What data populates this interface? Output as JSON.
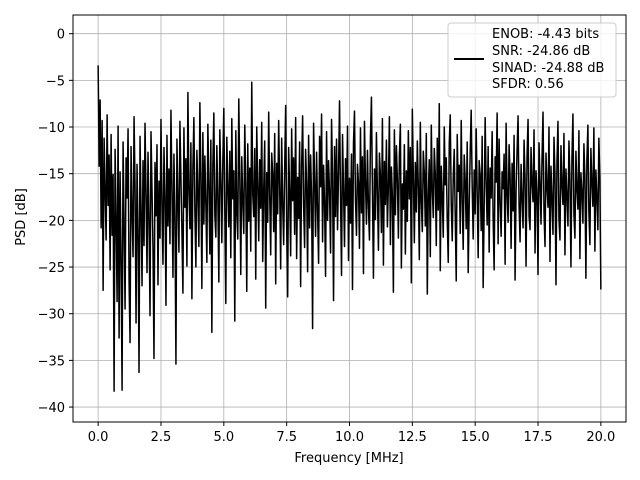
{
  "chart_data": {
    "type": "line",
    "title": "",
    "xlabel": "Frequency [MHz]",
    "ylabel": "PSD [dB]",
    "xlim": [
      -1.0,
      21.0
    ],
    "ylim": [
      -41.6,
      2.0
    ],
    "grid": true,
    "legend_placement": "upper-right",
    "x_ticks": [
      0.0,
      2.5,
      5.0,
      7.5,
      10.0,
      12.5,
      15.0,
      17.5,
      20.0
    ],
    "x_tick_labels": [
      "0.0",
      "2.5",
      "5.0",
      "7.5",
      "10.0",
      "12.5",
      "15.0",
      "17.5",
      "20.0"
    ],
    "y_ticks": [
      0,
      -5,
      -10,
      -15,
      -20,
      -25,
      -30,
      -35,
      -40
    ],
    "y_tick_labels": [
      "0",
      "−5",
      "−10",
      "−15",
      "−20",
      "−25",
      "−30",
      "−35",
      "−40"
    ],
    "legend": [
      "ENOB: -4.43 bits",
      "SNR: -24.86 dB",
      "SINAD: -24.88 dB",
      "SFDR: 0.56"
    ],
    "series": [
      {
        "color": "#000000",
        "x_start": 0.0,
        "x_end": 20.0,
        "values": [
          -3.4,
          -14.2,
          -7.1,
          -20.8,
          -9.3,
          -27.5,
          -11.2,
          -16.9,
          -22.1,
          -8.7,
          -18.4,
          -13.0,
          -25.3,
          -10.8,
          -21.6,
          -15.1,
          -38.3,
          -12.4,
          -19.9,
          -28.7,
          -9.9,
          -32.6,
          -14.8,
          -24.2,
          -38.2,
          -11.6,
          -20.3,
          -29.5,
          -13.3,
          -17.6,
          -10.2,
          -26.4,
          -33.1,
          -12.1,
          -19.2,
          -23.9,
          -8.9,
          -16.2,
          -31.0,
          -14.0,
          -21.3,
          -36.3,
          -11.0,
          -18.8,
          -27.0,
          -13.6,
          -22.7,
          -9.6,
          -17.1,
          -25.6,
          -12.7,
          -20.0,
          -30.2,
          -10.5,
          -16.6,
          -23.1,
          -34.8,
          -13.8,
          -19.5,
          -11.9,
          -26.9,
          -15.8,
          -21.9,
          -9.2,
          -18.1,
          -24.7,
          -12.2,
          -17.3,
          -29.1,
          -10.9,
          -20.6,
          -14.5,
          -22.5,
          -8.2,
          -16.4,
          -26.1,
          -12.9,
          -19.7,
          -35.4,
          -11.3,
          -17.8,
          -23.4,
          -9.4,
          -15.5,
          -21.1,
          -27.8,
          -10.1,
          -18.6,
          -13.4,
          -24.9,
          -6.3,
          -16.8,
          -20.9,
          -11.7,
          -28.4,
          -14.3,
          -9.0,
          -19.0,
          -25.0,
          -12.5,
          -17.0,
          -22.8,
          -7.4,
          -15.2,
          -27.3,
          -10.6,
          -20.4,
          -13.1,
          -18.3,
          -24.5,
          -9.7,
          -16.0,
          -23.6,
          -11.4,
          -32.0,
          -14.1,
          -8.5,
          -19.4,
          -21.8,
          -12.0,
          -17.5,
          -26.6,
          -10.3,
          -15.6,
          -22.4,
          -13.7,
          -8.0,
          -18.9,
          -28.9,
          -11.1,
          -16.3,
          -20.7,
          -12.6,
          -24.0,
          -9.1,
          -17.7,
          -14.7,
          -30.8,
          -10.4,
          -19.1,
          -22.0,
          -7.0,
          -15.3,
          -25.8,
          -13.2,
          -18.0,
          -21.4,
          -9.8,
          -16.1,
          -27.6,
          -11.8,
          -20.1,
          -14.4,
          -23.3,
          -5.2,
          -17.2,
          -19.6,
          -12.3,
          -26.3,
          -10.0,
          -15.9,
          -22.2,
          -13.5,
          -18.7,
          -9.5,
          -24.4,
          -16.7,
          -11.5,
          -29.4,
          -14.9,
          -20.2,
          -8.4,
          -17.4,
          -23.7,
          -12.8,
          -15.0,
          -21.2,
          -10.7,
          -26.8,
          -13.9,
          -19.3,
          -9.3,
          -16.5,
          -25.2,
          -11.2,
          -18.2,
          -22.6,
          -14.6,
          -7.7,
          -20.5,
          -28.2,
          -12.2,
          -16.9,
          -23.8,
          -10.2,
          -17.9,
          -13.3,
          -21.5,
          -9.0,
          -24.1,
          -15.4,
          -19.8,
          -11.6,
          -27.1,
          -14.2,
          -8.8,
          -18.5,
          -22.9,
          -12.4,
          -16.2,
          -25.5,
          -10.9,
          -20.8,
          -13.0,
          -17.6,
          -31.6,
          -9.6,
          -15.7,
          -21.7,
          -12.7,
          -19.0,
          -24.6,
          -11.0,
          -16.4,
          -8.6,
          -22.3,
          -14.1,
          -18.1,
          -26.0,
          -10.5,
          -20.0,
          -13.6,
          -17.0,
          -23.5,
          -9.2,
          -15.1,
          -28.6,
          -12.1,
          -19.6,
          -11.3,
          -21.0,
          -14.8,
          -7.2,
          -17.3,
          -25.9,
          -10.8,
          -16.6,
          -22.8,
          -13.4,
          -18.4,
          -9.9,
          -24.3,
          -15.5,
          -20.3,
          -12.9,
          -27.4,
          -11.7,
          -8.3,
          -17.8,
          -21.6,
          -14.0,
          -16.0,
          -23.0,
          -10.1,
          -19.2,
          -13.2,
          -25.7,
          -9.4,
          -15.8,
          -20.4,
          -12.5,
          -18.6,
          -22.1,
          -11.1,
          -6.8,
          -16.8,
          -26.2,
          -14.5,
          -19.9,
          -10.6,
          -17.1,
          -23.2,
          -12.8,
          -15.2,
          -21.3,
          -9.1,
          -24.8,
          -13.7,
          -18.3,
          -11.4,
          -20.7,
          -16.3,
          -8.9,
          -22.6,
          -14.3,
          -17.4,
          -27.7,
          -10.3,
          -19.4,
          -12.0,
          -15.6,
          -21.9,
          -13.1,
          -9.7,
          -25.1,
          -16.1,
          -18.8,
          -11.9,
          -23.6,
          -14.7,
          -20.1,
          -10.4,
          -17.7,
          -12.2,
          -26.7,
          -8.1,
          -15.3,
          -22.4,
          -13.8,
          -19.1,
          -11.5,
          -16.5,
          -24.2,
          -9.5,
          -18.0,
          -21.2,
          -12.6,
          -14.9,
          -20.6,
          -10.7,
          -27.9,
          -17.2,
          -13.5,
          -23.9,
          -9.8,
          -16.7,
          -19.7,
          -12.3,
          -15.0,
          -22.7,
          -11.2,
          -18.9,
          -7.5,
          -25.4,
          -14.2,
          -17.5,
          -21.8,
          -10.0,
          -16.2,
          -13.3,
          -20.0,
          -24.5,
          -11.8,
          -8.7,
          -18.2,
          -22.2,
          -15.4,
          -12.4,
          -19.5,
          -26.5,
          -10.8,
          -16.9,
          -14.1,
          -21.4,
          -9.3,
          -17.9,
          -23.1,
          -13.0,
          -15.7,
          -20.9,
          -11.6,
          -25.6,
          -18.5,
          -12.7,
          -8.2,
          -16.4,
          -22.0,
          -14.6,
          -19.3,
          -10.2,
          -17.0,
          -24.0,
          -13.6,
          -15.1,
          -21.1,
          -11.0,
          -27.2,
          -18.7,
          -9.0,
          -16.0,
          -20.5,
          -12.1,
          -23.4,
          -14.4,
          -17.6,
          -10.5,
          -19.8,
          -25.3,
          -13.2,
          -15.9,
          -8.5,
          -22.5,
          -11.3,
          -18.1,
          -21.7,
          -14.8,
          -16.6,
          -12.9,
          -24.7,
          -9.6,
          -17.3,
          -20.2,
          -11.9,
          -15.2,
          -23.0,
          -13.9,
          -19.0,
          -10.9,
          -26.4,
          -16.8,
          -12.5,
          -8.8,
          -18.4,
          -22.3,
          -14.0,
          -17.7,
          -20.8,
          -11.4,
          -15.5,
          -24.9,
          -13.1,
          -9.2,
          -19.6,
          -21.0,
          -12.2,
          -16.1,
          -18.0,
          -10.3,
          -23.5,
          -14.7,
          -17.1,
          -25.8,
          -11.7,
          -15.8,
          -20.4,
          -13.4,
          -8.4,
          -19.2,
          -22.8,
          -12.8,
          -16.5,
          -18.6,
          -10.0,
          -24.4,
          -14.2,
          -17.8,
          -21.5,
          -11.1,
          -15.0,
          -26.9,
          -13.8,
          -9.4,
          -19.9,
          -22.1,
          -12.0,
          -16.3,
          -18.3,
          -10.7,
          -23.7,
          -14.5,
          -17.4,
          -20.6,
          -11.5,
          -15.6,
          -25.0,
          -13.3,
          -8.6,
          -19.4,
          -21.9,
          -12.6,
          -16.7,
          -18.8,
          -10.4,
          -24.1,
          -14.9,
          -17.0,
          -20.3,
          -11.8,
          -15.3,
          -26.2,
          -13.5,
          -9.8,
          -19.1,
          -22.6,
          -12.3,
          -16.0,
          -18.5,
          -10.1,
          -23.3,
          -14.6,
          -17.5,
          -21.0,
          -11.2,
          -15.7,
          -27.4
        ]
      },
      {
        "color": "#000000",
        "note": "visible-in-legend-only",
        "x_start": 0.0,
        "x_end": 20.0,
        "values": []
      }
    ]
  }
}
